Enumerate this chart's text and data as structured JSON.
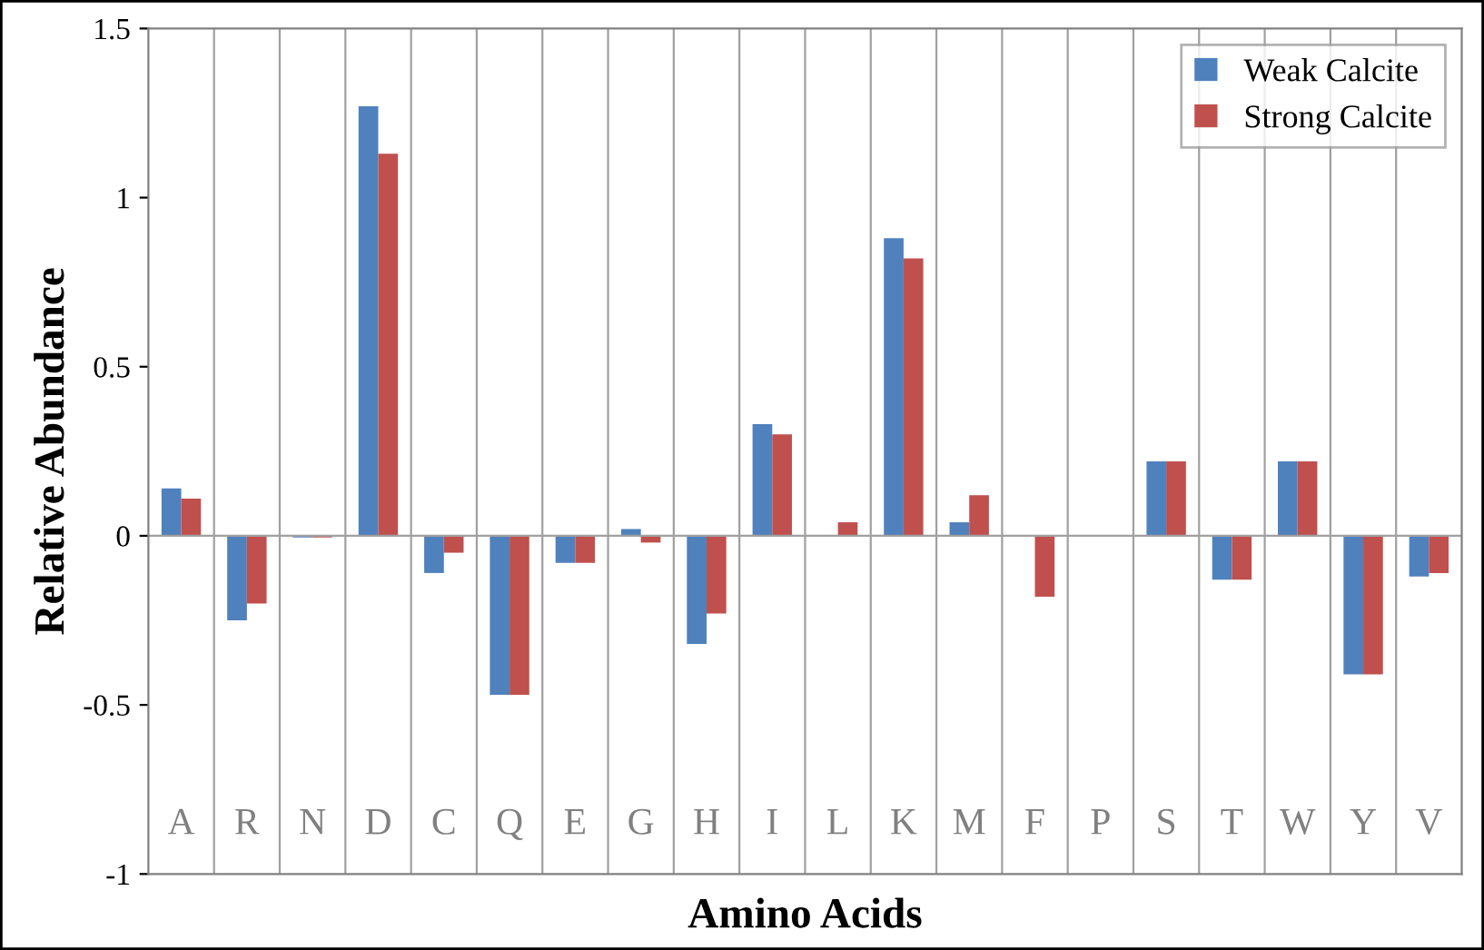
{
  "chart_data": {
    "type": "bar",
    "xlabel": "Amino Acids",
    "ylabel": "Relative Abundance",
    "categories": [
      "A",
      "R",
      "N",
      "D",
      "C",
      "Q",
      "E",
      "G",
      "H",
      "I",
      "L",
      "K",
      "M",
      "F",
      "P",
      "S",
      "T",
      "W",
      "Y",
      "V"
    ],
    "ref_lines": [
      {
        "axis": "y",
        "value": 0,
        "color": "#a0a0a0"
      }
    ],
    "series": [
      {
        "name": "Weak Calcite",
        "color": "#4f81bd",
        "values": [
          0.14,
          -0.25,
          -0.005,
          1.27,
          -0.11,
          -0.47,
          -0.08,
          0.02,
          -0.32,
          0.33,
          0,
          0.88,
          0.04,
          0,
          0,
          0.22,
          -0.13,
          0.22,
          -0.41,
          -0.12
        ]
      },
      {
        "name": "Strong Calcite",
        "color": "#c0504d",
        "values": [
          0.11,
          -0.2,
          -0.005,
          1.13,
          -0.05,
          -0.47,
          -0.08,
          -0.02,
          -0.23,
          0.3,
          0.04,
          0.82,
          0.12,
          -0.18,
          0,
          0.22,
          -0.13,
          0.22,
          -0.41,
          -0.11
        ]
      }
    ],
    "ylim": [
      -1,
      1.5
    ],
    "yticks": [
      {
        "value": -1,
        "label": "-1"
      },
      {
        "value": -0.5,
        "label": "-0.5"
      },
      0,
      0.5,
      1,
      1.5
    ],
    "grid": "x",
    "legend": "top right"
  }
}
